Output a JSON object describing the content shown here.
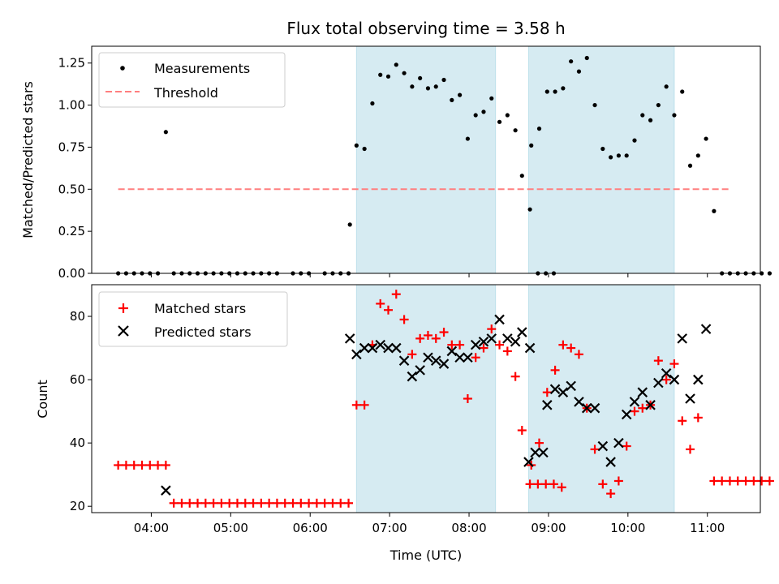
{
  "chart_data": [
    {
      "panel": "top",
      "type": "scatter",
      "title": "Flux total observing time = 3.58 h",
      "xlabel": "",
      "ylabel": "Matched/Predicted stars",
      "xlim": [
        "03:15",
        "11:40"
      ],
      "ylim": [
        0,
        1.35
      ],
      "yticks": [
        0.0,
        0.25,
        0.5,
        0.75,
        1.0,
        1.25
      ],
      "ytick_labels": [
        "0.00",
        "0.25",
        "0.50",
        "0.75",
        "1.00",
        "1.25"
      ],
      "shaded_intervals": [
        [
          "06:35",
          "08:20"
        ],
        [
          "08:45",
          "10:35"
        ]
      ],
      "legend": {
        "placement": "upper-left",
        "entries": [
          "Measurements",
          "Threshold"
        ]
      },
      "series": [
        {
          "name": "Measurements",
          "marker": "dot",
          "color": "#000000",
          "points": [
            [
              "03:35",
              0
            ],
            [
              "03:41",
              0
            ],
            [
              "03:47",
              0
            ],
            [
              "03:53",
              0
            ],
            [
              "03:59",
              0
            ],
            [
              "04:05",
              0
            ],
            [
              "04:11",
              0.84
            ],
            [
              "04:17",
              0
            ],
            [
              "04:23",
              0
            ],
            [
              "04:29",
              0
            ],
            [
              "04:35",
              0
            ],
            [
              "04:41",
              0
            ],
            [
              "04:47",
              0
            ],
            [
              "04:53",
              0
            ],
            [
              "04:59",
              0
            ],
            [
              "05:05",
              0
            ],
            [
              "05:11",
              0
            ],
            [
              "05:17",
              0
            ],
            [
              "05:23",
              0
            ],
            [
              "05:29",
              0
            ],
            [
              "05:35",
              0
            ],
            [
              "05:47",
              0
            ],
            [
              "05:53",
              0
            ],
            [
              "05:59",
              0
            ],
            [
              "06:11",
              0
            ],
            [
              "06:17",
              0
            ],
            [
              "06:23",
              0
            ],
            [
              "06:29",
              0
            ],
            [
              "06:30",
              0.29
            ],
            [
              "06:35",
              0.76
            ],
            [
              "06:41",
              0.74
            ],
            [
              "06:47",
              1.01
            ],
            [
              "06:53",
              1.18
            ],
            [
              "06:59",
              1.17
            ],
            [
              "07:05",
              1.24
            ],
            [
              "07:11",
              1.19
            ],
            [
              "07:17",
              1.11
            ],
            [
              "07:23",
              1.16
            ],
            [
              "07:29",
              1.1
            ],
            [
              "07:35",
              1.11
            ],
            [
              "07:41",
              1.15
            ],
            [
              "07:47",
              1.03
            ],
            [
              "07:53",
              1.06
            ],
            [
              "07:59",
              0.8
            ],
            [
              "08:05",
              0.94
            ],
            [
              "08:11",
              0.96
            ],
            [
              "08:17",
              1.04
            ],
            [
              "08:23",
              0.9
            ],
            [
              "08:29",
              0.94
            ],
            [
              "08:35",
              0.85
            ],
            [
              "08:40",
              0.58
            ],
            [
              "08:46",
              0.38
            ],
            [
              "08:52",
              0
            ],
            [
              "08:58",
              0
            ],
            [
              "09:04",
              0
            ],
            [
              "08:47",
              0.76
            ],
            [
              "08:53",
              0.86
            ],
            [
              "08:59",
              1.08
            ],
            [
              "09:05",
              1.08
            ],
            [
              "09:11",
              1.1
            ],
            [
              "09:17",
              1.26
            ],
            [
              "09:23",
              1.2
            ],
            [
              "09:29",
              1.28
            ],
            [
              "09:35",
              1.0
            ],
            [
              "09:41",
              0.74
            ],
            [
              "09:47",
              0.69
            ],
            [
              "09:53",
              0.7
            ],
            [
              "09:59",
              0.7
            ],
            [
              "10:05",
              0.79
            ],
            [
              "10:11",
              0.94
            ],
            [
              "10:17",
              0.91
            ],
            [
              "10:23",
              1.0
            ],
            [
              "10:29",
              1.11
            ],
            [
              "10:35",
              0.94
            ],
            [
              "10:41",
              1.08
            ],
            [
              "10:47",
              0.64
            ],
            [
              "10:53",
              0.7
            ],
            [
              "10:59",
              0.8
            ],
            [
              "11:05",
              0.37
            ],
            [
              "11:11",
              0
            ],
            [
              "11:17",
              0
            ],
            [
              "11:23",
              0
            ],
            [
              "11:29",
              0
            ],
            [
              "11:35",
              0
            ],
            [
              "11:41",
              0
            ],
            [
              "11:47",
              0
            ]
          ]
        },
        {
          "name": "Threshold",
          "marker": "dashed-line",
          "color": "#ff7f7f",
          "points": [
            [
              "03:35",
              0.5
            ],
            [
              "11:17",
              0.5
            ]
          ]
        }
      ]
    },
    {
      "panel": "bottom",
      "type": "scatter",
      "title": "",
      "xlabel": "Time (UTC)",
      "ylabel": "Count",
      "xlim": [
        "03:15",
        "11:40"
      ],
      "ylim": [
        18,
        90
      ],
      "xticks": [
        "04:00",
        "05:00",
        "06:00",
        "07:00",
        "08:00",
        "09:00",
        "10:00",
        "11:00"
      ],
      "yticks": [
        20,
        40,
        60,
        80
      ],
      "ytick_labels": [
        "20",
        "40",
        "60",
        "80"
      ],
      "shaded_intervals": [
        [
          "06:35",
          "08:20"
        ],
        [
          "08:45",
          "10:35"
        ]
      ],
      "legend": {
        "placement": "upper-left",
        "entries": [
          "Matched stars",
          "Predicted stars"
        ]
      },
      "series": [
        {
          "name": "Matched stars",
          "marker": "plus",
          "color": "#ff0000",
          "points": [
            [
              "03:35",
              33
            ],
            [
              "03:41",
              33
            ],
            [
              "03:47",
              33
            ],
            [
              "03:53",
              33
            ],
            [
              "03:59",
              33
            ],
            [
              "04:05",
              33
            ],
            [
              "04:11",
              33
            ],
            [
              "04:17",
              21
            ],
            [
              "04:23",
              21
            ],
            [
              "04:29",
              21
            ],
            [
              "04:35",
              21
            ],
            [
              "04:41",
              21
            ],
            [
              "04:47",
              21
            ],
            [
              "04:53",
              21
            ],
            [
              "04:59",
              21
            ],
            [
              "05:05",
              21
            ],
            [
              "05:11",
              21
            ],
            [
              "05:17",
              21
            ],
            [
              "05:23",
              21
            ],
            [
              "05:29",
              21
            ],
            [
              "05:35",
              21
            ],
            [
              "05:41",
              21
            ],
            [
              "05:47",
              21
            ],
            [
              "05:53",
              21
            ],
            [
              "05:59",
              21
            ],
            [
              "06:05",
              21
            ],
            [
              "06:11",
              21
            ],
            [
              "06:17",
              21
            ],
            [
              "06:23",
              21
            ],
            [
              "06:29",
              21
            ],
            [
              "06:35",
              52
            ],
            [
              "06:41",
              52
            ],
            [
              "06:47",
              71
            ],
            [
              "06:53",
              84
            ],
            [
              "06:59",
              82
            ],
            [
              "07:05",
              87
            ],
            [
              "07:11",
              79
            ],
            [
              "07:17",
              68
            ],
            [
              "07:23",
              73
            ],
            [
              "07:29",
              74
            ],
            [
              "07:35",
              73
            ],
            [
              "07:41",
              75
            ],
            [
              "07:47",
              71
            ],
            [
              "07:53",
              71
            ],
            [
              "07:59",
              54
            ],
            [
              "08:05",
              67
            ],
            [
              "08:11",
              70
            ],
            [
              "08:17",
              76
            ],
            [
              "08:23",
              71
            ],
            [
              "08:29",
              69
            ],
            [
              "08:35",
              61
            ],
            [
              "08:40",
              44
            ],
            [
              "08:46",
              27
            ],
            [
              "08:52",
              27
            ],
            [
              "08:58",
              27
            ],
            [
              "09:04",
              27
            ],
            [
              "09:10",
              26
            ],
            [
              "08:47",
              33
            ],
            [
              "08:53",
              40
            ],
            [
              "08:59",
              56
            ],
            [
              "09:05",
              63
            ],
            [
              "09:11",
              71
            ],
            [
              "09:17",
              70
            ],
            [
              "09:23",
              68
            ],
            [
              "09:29",
              51
            ],
            [
              "09:35",
              38
            ],
            [
              "09:41",
              27
            ],
            [
              "09:47",
              24
            ],
            [
              "09:53",
              28
            ],
            [
              "09:59",
              39
            ],
            [
              "10:05",
              50
            ],
            [
              "10:11",
              51
            ],
            [
              "10:17",
              52
            ],
            [
              "10:23",
              66
            ],
            [
              "10:29",
              60
            ],
            [
              "10:35",
              65
            ],
            [
              "10:41",
              47
            ],
            [
              "10:47",
              38
            ],
            [
              "10:53",
              48
            ],
            [
              "11:05",
              28
            ],
            [
              "11:11",
              28
            ],
            [
              "11:17",
              28
            ],
            [
              "11:23",
              28
            ],
            [
              "11:29",
              28
            ],
            [
              "11:35",
              28
            ],
            [
              "11:41",
              28
            ],
            [
              "11:47",
              28
            ]
          ]
        },
        {
          "name": "Predicted stars",
          "marker": "x",
          "color": "#000000",
          "points": [
            [
              "04:11",
              25
            ],
            [
              "06:30",
              73
            ],
            [
              "06:35",
              68
            ],
            [
              "06:41",
              70
            ],
            [
              "06:47",
              70
            ],
            [
              "06:53",
              71
            ],
            [
              "06:59",
              70
            ],
            [
              "07:05",
              70
            ],
            [
              "07:11",
              66
            ],
            [
              "07:17",
              61
            ],
            [
              "07:23",
              63
            ],
            [
              "07:29",
              67
            ],
            [
              "07:35",
              66
            ],
            [
              "07:41",
              65
            ],
            [
              "07:47",
              69
            ],
            [
              "07:53",
              67
            ],
            [
              "07:59",
              67
            ],
            [
              "08:05",
              71
            ],
            [
              "08:11",
              72
            ],
            [
              "08:17",
              73
            ],
            [
              "08:23",
              79
            ],
            [
              "08:29",
              73
            ],
            [
              "08:35",
              72
            ],
            [
              "08:40",
              75
            ],
            [
              "08:46",
              70
            ],
            [
              "08:45",
              34
            ],
            [
              "08:50",
              37
            ],
            [
              "08:56",
              37
            ],
            [
              "08:59",
              52
            ],
            [
              "09:05",
              57
            ],
            [
              "09:11",
              56
            ],
            [
              "09:17",
              58
            ],
            [
              "09:23",
              53
            ],
            [
              "09:29",
              51
            ],
            [
              "09:35",
              51
            ],
            [
              "09:41",
              39
            ],
            [
              "09:47",
              34
            ],
            [
              "09:53",
              40
            ],
            [
              "09:59",
              49
            ],
            [
              "10:05",
              53
            ],
            [
              "10:11",
              56
            ],
            [
              "10:17",
              52
            ],
            [
              "10:23",
              59
            ],
            [
              "10:29",
              62
            ],
            [
              "10:35",
              60
            ],
            [
              "10:41",
              73
            ],
            [
              "10:47",
              54
            ],
            [
              "10:53",
              60
            ],
            [
              "10:59",
              76
            ]
          ]
        }
      ]
    }
  ]
}
